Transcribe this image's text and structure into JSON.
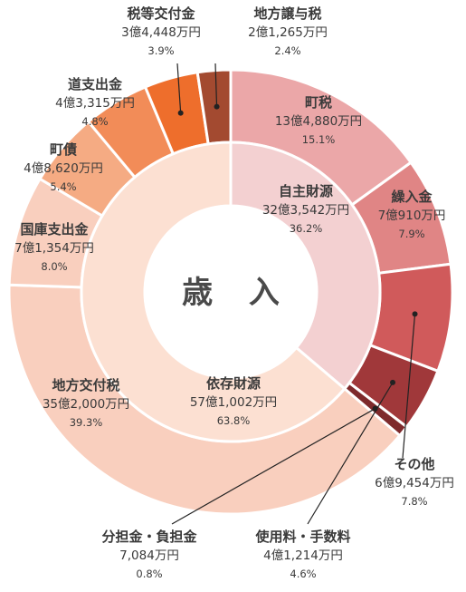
{
  "chart_data": {
    "type": "donut",
    "center_label": "歳 入",
    "outer": [
      {
        "name": "町税",
        "amount": "13億4,880万円",
        "percent": "15.1%",
        "value": 15.1,
        "color": "#eba7a8"
      },
      {
        "name": "繰入金",
        "amount": "7億910万円",
        "percent": "7.9%",
        "value": 7.9,
        "color": "#e08585"
      },
      {
        "name": "",
        "amount": "",
        "percent": "",
        "value": 7.8,
        "color": "#d05a5b"
      },
      {
        "name": "",
        "amount": "",
        "percent": "",
        "value": 4.6,
        "color": "#a0383a"
      },
      {
        "name": "",
        "amount": "",
        "percent": "",
        "value": 0.8,
        "color": "#7e2a2c"
      },
      {
        "name": "地方交付税",
        "amount": "35億2,000万円",
        "percent": "39.3%",
        "value": 39.3,
        "color": "#f9cfbe"
      },
      {
        "name": "国庫支出金",
        "amount": "7億1,354万円",
        "percent": "8.0%",
        "value": 8.0,
        "color": "#f9cfbe"
      },
      {
        "name": "町債",
        "amount": "4億8,620万円",
        "percent": "5.4%",
        "value": 5.4,
        "color": "#f5ab83"
      },
      {
        "name": "道支出金",
        "amount": "4億3,315万円",
        "percent": "4.8%",
        "value": 4.8,
        "color": "#f28c58"
      },
      {
        "name": "",
        "amount": "",
        "percent": "",
        "value": 3.9,
        "color": "#ee6e2c"
      },
      {
        "name": "",
        "amount": "",
        "percent": "",
        "value": 2.4,
        "color": "#a34a30"
      }
    ],
    "inner": [
      {
        "name": "自主財源",
        "amount": "32億3,542万円",
        "percent": "36.2%",
        "value": 36.2,
        "color": "#f3d0d1"
      },
      {
        "name": "依存財源",
        "amount": "57億1,002万円",
        "percent": "63.8%",
        "value": 63.8,
        "color": "#fce0d2"
      }
    ],
    "callouts": [
      {
        "name": "税等交付金",
        "amount": "3億4,448万円",
        "percent": "3.9%"
      },
      {
        "name": "地方譲与税",
        "amount": "2億1,265万円",
        "percent": "2.4%"
      },
      {
        "name": "その他",
        "amount": "6億9,454万円",
        "percent": "7.8%"
      },
      {
        "name": "使用料・手数料",
        "amount": "4億1,214万円",
        "percent": "4.6%"
      },
      {
        "name": "分担金・負担金",
        "amount": "7,084万円",
        "percent": "0.8%"
      }
    ]
  }
}
